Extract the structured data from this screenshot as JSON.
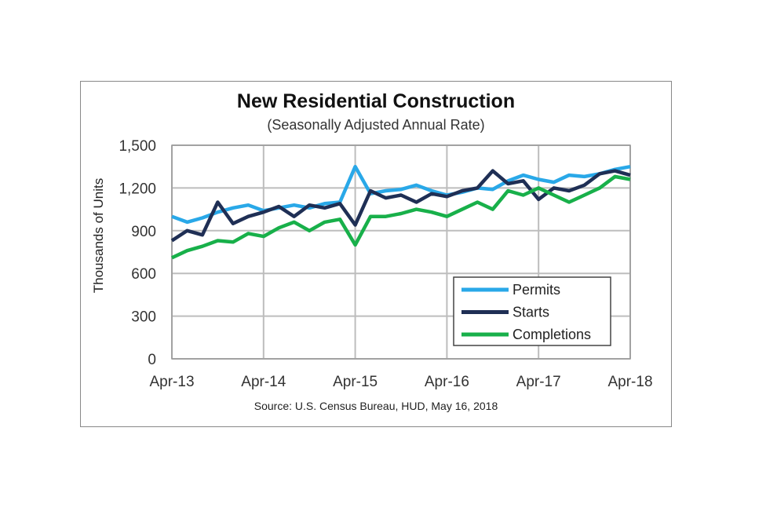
{
  "chart_data": {
    "type": "line",
    "title": "New Residential Construction",
    "subtitle": "(Seasonally Adjusted Annual Rate)",
    "ylabel": "Thousands of Units",
    "xlabel": "",
    "source": "Source:  U.S. Census Bureau, HUD, May 16, 2018",
    "ylim": [
      0,
      1500
    ],
    "yticks": [
      "0",
      "300",
      "600",
      "900",
      "1,200",
      "1,500"
    ],
    "ytick_values": [
      0,
      300,
      600,
      900,
      1200,
      1500
    ],
    "xticks": [
      "Apr-13",
      "Apr-14",
      "Apr-15",
      "Apr-16",
      "Apr-17",
      "Apr-18"
    ],
    "x": [
      "Apr-13",
      "Jun-13",
      "Aug-13",
      "Oct-13",
      "Dec-13",
      "Feb-14",
      "Apr-14",
      "Jun-14",
      "Aug-14",
      "Oct-14",
      "Dec-14",
      "Feb-15",
      "Apr-15",
      "Jun-15",
      "Aug-15",
      "Oct-15",
      "Dec-15",
      "Feb-16",
      "Apr-16",
      "Jun-16",
      "Aug-16",
      "Oct-16",
      "Dec-16",
      "Feb-17",
      "Apr-17",
      "Jun-17",
      "Aug-17",
      "Oct-17",
      "Dec-17",
      "Feb-18",
      "Apr-18"
    ],
    "grid": true,
    "legend_position": "bottom-right",
    "series": [
      {
        "name": "Permits",
        "color": "#29a8e8",
        "values": [
          1000,
          960,
          990,
          1030,
          1060,
          1080,
          1040,
          1060,
          1080,
          1060,
          1090,
          1100,
          1350,
          1160,
          1180,
          1190,
          1220,
          1180,
          1150,
          1170,
          1200,
          1190,
          1250,
          1290,
          1260,
          1240,
          1290,
          1280,
          1300,
          1330,
          1350
        ]
      },
      {
        "name": "Starts",
        "color": "#1f2f55",
        "values": [
          830,
          900,
          870,
          1100,
          950,
          1000,
          1030,
          1070,
          1000,
          1080,
          1060,
          1090,
          940,
          1180,
          1130,
          1150,
          1100,
          1160,
          1140,
          1180,
          1200,
          1320,
          1230,
          1250,
          1120,
          1200,
          1180,
          1220,
          1300,
          1320,
          1290
        ]
      },
      {
        "name": "Completions",
        "color": "#18b04a",
        "values": [
          710,
          760,
          790,
          830,
          820,
          880,
          860,
          920,
          960,
          900,
          960,
          980,
          800,
          1000,
          1000,
          1020,
          1050,
          1030,
          1000,
          1050,
          1100,
          1050,
          1180,
          1150,
          1200,
          1150,
          1100,
          1150,
          1200,
          1280,
          1260
        ]
      }
    ]
  }
}
